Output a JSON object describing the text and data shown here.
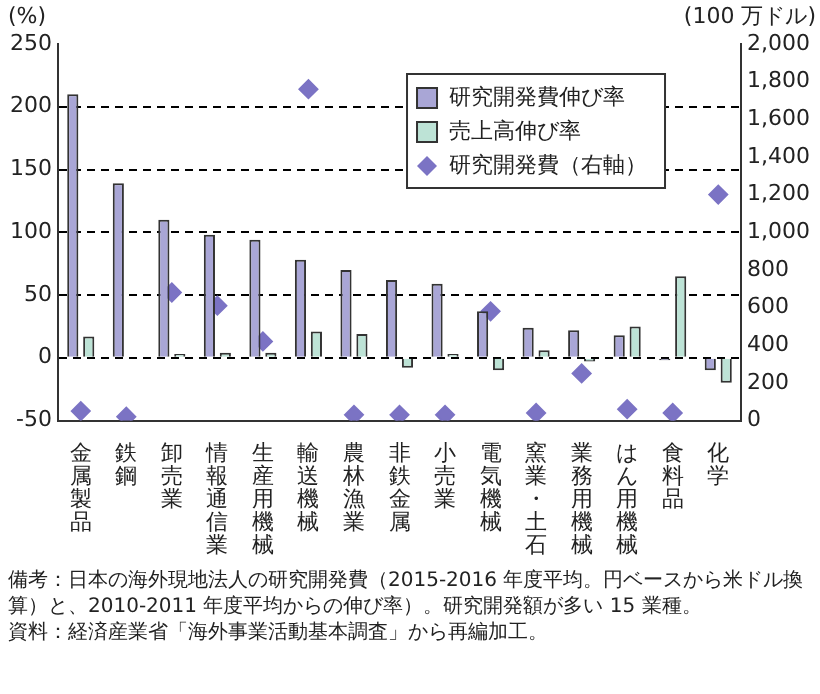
{
  "chart_data": {
    "type": "bar",
    "ylabel": "(%)",
    "y2label": "(100 万ドル)",
    "categories": [
      "金属製品",
      "鉄鋼",
      "卸売業",
      "情報通信業",
      "生産用機械",
      "輸送機械",
      "農林漁業",
      "非鉄金属",
      "小売業",
      "電気機械",
      "窯業・土石",
      "業務用機械",
      "はん用機械",
      "食料品",
      "化学"
    ],
    "series": [
      {
        "name": "研究開発費伸び率",
        "color": "#a9a6d6",
        "values": [
          210,
          139,
          110,
          98,
          94,
          78,
          70,
          62,
          59,
          37,
          24,
          22,
          18,
          -2,
          -10
        ]
      },
      {
        "name": "売上高伸び率",
        "color": "#bde3d6",
        "values": [
          17,
          0,
          3,
          4,
          4,
          21,
          19,
          -8,
          3,
          -10,
          6,
          -3,
          25,
          65,
          -20
        ]
      },
      {
        "name": "研究開発費（右軸）",
        "type": "scatter",
        "axis": "y2",
        "marker": "diamond",
        "color": "#7b73c4",
        "values": [
          50,
          20,
          680,
          610,
          420,
          1760,
          30,
          30,
          30,
          580,
          40,
          250,
          60,
          40,
          1200
        ]
      }
    ],
    "ylim": [
      -50,
      250
    ],
    "yticks": [
      -50,
      0,
      50,
      100,
      150,
      200,
      250
    ],
    "y2lim": [
      0,
      2000
    ],
    "y2ticks": [
      0,
      200,
      400,
      600,
      800,
      {
        "value": 1000,
        "label": "1,000"
      },
      {
        "value": 1200,
        "label": "1,200"
      },
      {
        "value": 1400,
        "label": "1,400"
      },
      {
        "value": 1600,
        "label": "1,600"
      },
      {
        "value": 1800,
        "label": "1,800"
      },
      {
        "value": 2000,
        "label": "2,000"
      }
    ],
    "grid": "y",
    "legend": "top right",
    "annotations": [
      "備考：日本の海外現地法人の研究開発費（2015-2016 年度平均。円ベースから米ドル換算）と、2010-2011 年度平均からの伸び率）。研究開発額が多い 15 業種。",
      "資料：経済産業省「海外事業活動基本調査」から再編加工。"
    ]
  }
}
